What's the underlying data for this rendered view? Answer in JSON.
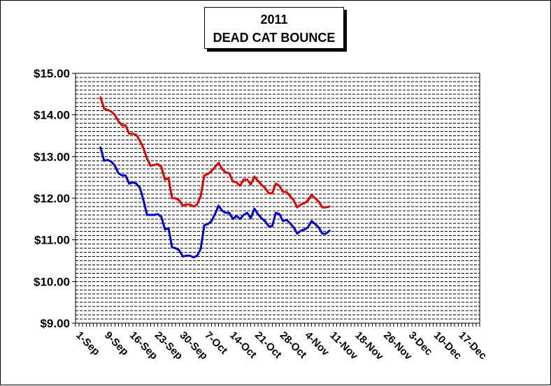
{
  "chart_data": {
    "type": "line",
    "title_line1": "2011",
    "title_line2": "DEAD CAT BOUNCE",
    "ylim": [
      9,
      15
    ],
    "y_ticks": [
      "$15.00",
      "$14.00",
      "$13.00",
      "$12.00",
      "$11.00",
      "$10.00",
      "$9.00"
    ],
    "y_tick_values": [
      15,
      14,
      13,
      12,
      11,
      10,
      9
    ],
    "x_date_range": [
      "2011-09-01",
      "2011-12-23"
    ],
    "x_ticks": [
      "1-Sep",
      "9-Sep",
      "16-Sep",
      "23-Sep",
      "30-Sep",
      "7-Oct",
      "14-Oct",
      "21-Oct",
      "28-Oct",
      "4-Nov",
      "11-Nov",
      "18-Nov",
      "26-Nov",
      "3-Dec",
      "10-Dec",
      "17-Dec"
    ],
    "x_tick_dates": [
      "2011-09-01",
      "2011-09-09",
      "2011-09-16",
      "2011-09-23",
      "2011-09-30",
      "2011-10-07",
      "2011-10-14",
      "2011-10-21",
      "2011-10-28",
      "2011-11-04",
      "2011-11-11",
      "2011-11-18",
      "2011-11-26",
      "2011-12-03",
      "2011-12-10",
      "2011-12-17"
    ],
    "grid": "horizontal minor",
    "series": [
      {
        "color": "#e00000",
        "points": [
          [
            "2011-09-08",
            14.42
          ],
          [
            "2011-09-09",
            14.15
          ],
          [
            "2011-09-10",
            14.12
          ],
          [
            "2011-09-11",
            14.08
          ],
          [
            "2011-09-12",
            14.0
          ],
          [
            "2011-09-13",
            13.85
          ],
          [
            "2011-09-14",
            13.75
          ],
          [
            "2011-09-15",
            13.75
          ],
          [
            "2011-09-16",
            13.55
          ],
          [
            "2011-09-17",
            13.55
          ],
          [
            "2011-09-18",
            13.52
          ],
          [
            "2011-09-19",
            13.38
          ],
          [
            "2011-09-20",
            13.2
          ],
          [
            "2011-09-21",
            12.95
          ],
          [
            "2011-09-22",
            12.78
          ],
          [
            "2011-09-23",
            12.8
          ],
          [
            "2011-09-24",
            12.82
          ],
          [
            "2011-09-25",
            12.75
          ],
          [
            "2011-09-26",
            12.45
          ],
          [
            "2011-09-27",
            12.48
          ],
          [
            "2011-09-28",
            12.0
          ],
          [
            "2011-09-29",
            12.0
          ],
          [
            "2011-09-30",
            11.95
          ],
          [
            "2011-10-01",
            11.82
          ],
          [
            "2011-10-02",
            11.85
          ],
          [
            "2011-10-03",
            11.85
          ],
          [
            "2011-10-04",
            11.8
          ],
          [
            "2011-10-05",
            11.85
          ],
          [
            "2011-10-06",
            12.05
          ],
          [
            "2011-10-07",
            12.55
          ],
          [
            "2011-10-08",
            12.58
          ],
          [
            "2011-10-09",
            12.65
          ],
          [
            "2011-10-10",
            12.75
          ],
          [
            "2011-10-11",
            12.85
          ],
          [
            "2011-10-12",
            12.7
          ],
          [
            "2011-10-13",
            12.62
          ],
          [
            "2011-10-14",
            12.6
          ],
          [
            "2011-10-15",
            12.4
          ],
          [
            "2011-10-16",
            12.38
          ],
          [
            "2011-10-17",
            12.3
          ],
          [
            "2011-10-18",
            12.45
          ],
          [
            "2011-10-19",
            12.45
          ],
          [
            "2011-10-20",
            12.33
          ],
          [
            "2011-10-21",
            12.52
          ],
          [
            "2011-10-22",
            12.42
          ],
          [
            "2011-10-23",
            12.32
          ],
          [
            "2011-10-24",
            12.25
          ],
          [
            "2011-10-25",
            12.12
          ],
          [
            "2011-10-26",
            12.12
          ],
          [
            "2011-10-27",
            12.35
          ],
          [
            "2011-10-28",
            12.3
          ],
          [
            "2011-10-29",
            12.15
          ],
          [
            "2011-10-30",
            12.15
          ],
          [
            "2011-10-31",
            12.05
          ],
          [
            "2011-11-01",
            11.95
          ],
          [
            "2011-11-02",
            11.78
          ],
          [
            "2011-11-03",
            11.85
          ],
          [
            "2011-11-04",
            11.88
          ],
          [
            "2011-11-05",
            11.95
          ],
          [
            "2011-11-06",
            12.08
          ],
          [
            "2011-11-07",
            12.0
          ],
          [
            "2011-11-08",
            11.92
          ],
          [
            "2011-11-09",
            11.78
          ],
          [
            "2011-11-10",
            11.78
          ],
          [
            "2011-11-11",
            11.8
          ]
        ]
      },
      {
        "color": "#0000cc",
        "points": [
          [
            "2011-09-08",
            13.22
          ],
          [
            "2011-09-09",
            12.9
          ],
          [
            "2011-09-10",
            12.92
          ],
          [
            "2011-09-11",
            12.88
          ],
          [
            "2011-09-12",
            12.78
          ],
          [
            "2011-09-13",
            12.6
          ],
          [
            "2011-09-14",
            12.55
          ],
          [
            "2011-09-15",
            12.55
          ],
          [
            "2011-09-16",
            12.35
          ],
          [
            "2011-09-17",
            12.38
          ],
          [
            "2011-09-18",
            12.35
          ],
          [
            "2011-09-19",
            12.25
          ],
          [
            "2011-09-20",
            11.95
          ],
          [
            "2011-09-21",
            11.6
          ],
          [
            "2011-09-22",
            11.6
          ],
          [
            "2011-09-23",
            11.6
          ],
          [
            "2011-09-24",
            11.62
          ],
          [
            "2011-09-25",
            11.55
          ],
          [
            "2011-09-26",
            11.25
          ],
          [
            "2011-09-27",
            11.28
          ],
          [
            "2011-09-28",
            10.82
          ],
          [
            "2011-09-29",
            10.8
          ],
          [
            "2011-09-30",
            10.75
          ],
          [
            "2011-10-01",
            10.6
          ],
          [
            "2011-10-02",
            10.62
          ],
          [
            "2011-10-03",
            10.62
          ],
          [
            "2011-10-04",
            10.58
          ],
          [
            "2011-10-05",
            10.62
          ],
          [
            "2011-10-06",
            10.78
          ],
          [
            "2011-10-07",
            11.35
          ],
          [
            "2011-10-08",
            11.38
          ],
          [
            "2011-10-09",
            11.45
          ],
          [
            "2011-10-10",
            11.62
          ],
          [
            "2011-10-11",
            11.82
          ],
          [
            "2011-10-12",
            11.7
          ],
          [
            "2011-10-13",
            11.65
          ],
          [
            "2011-10-14",
            11.65
          ],
          [
            "2011-10-15",
            11.5
          ],
          [
            "2011-10-16",
            11.58
          ],
          [
            "2011-10-17",
            11.5
          ],
          [
            "2011-10-18",
            11.6
          ],
          [
            "2011-10-19",
            11.65
          ],
          [
            "2011-10-20",
            11.52
          ],
          [
            "2011-10-21",
            11.75
          ],
          [
            "2011-10-22",
            11.62
          ],
          [
            "2011-10-23",
            11.52
          ],
          [
            "2011-10-24",
            11.45
          ],
          [
            "2011-10-25",
            11.33
          ],
          [
            "2011-10-26",
            11.33
          ],
          [
            "2011-10-27",
            11.65
          ],
          [
            "2011-10-28",
            11.62
          ],
          [
            "2011-10-29",
            11.45
          ],
          [
            "2011-10-30",
            11.48
          ],
          [
            "2011-10-31",
            11.4
          ],
          [
            "2011-11-01",
            11.3
          ],
          [
            "2011-11-02",
            11.15
          ],
          [
            "2011-11-03",
            11.22
          ],
          [
            "2011-11-04",
            11.25
          ],
          [
            "2011-11-05",
            11.3
          ],
          [
            "2011-11-06",
            11.45
          ],
          [
            "2011-11-07",
            11.38
          ],
          [
            "2011-11-08",
            11.3
          ],
          [
            "2011-11-09",
            11.15
          ],
          [
            "2011-11-10",
            11.15
          ],
          [
            "2011-11-11",
            11.22
          ]
        ]
      }
    ]
  }
}
